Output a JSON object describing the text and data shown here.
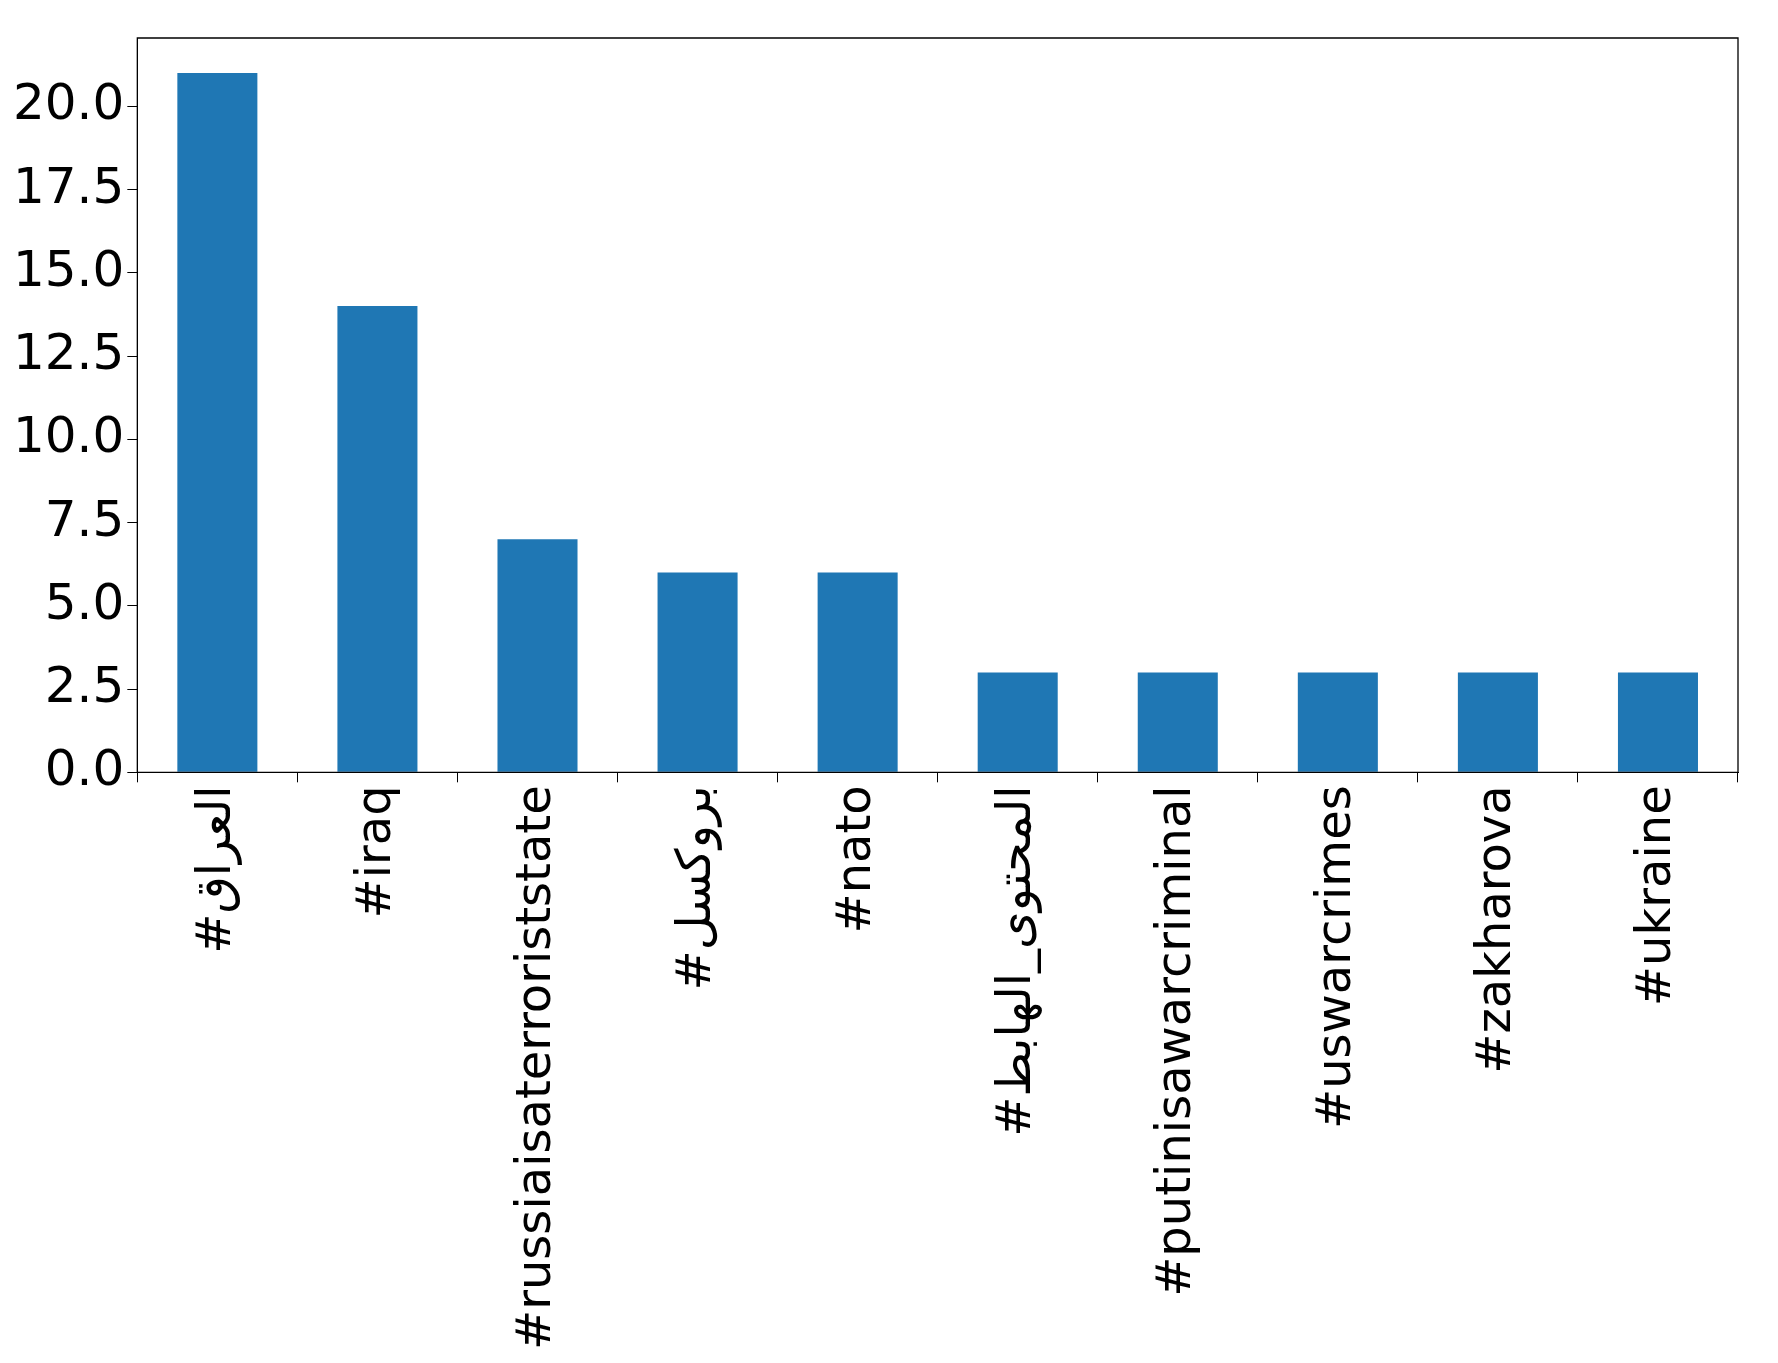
{
  "chart_data": {
    "type": "bar",
    "categories": [
      "#العراق",
      "#iraq",
      "#russiaisaterroriststate",
      "#بروكسل",
      "#nato",
      "#المحتوى_الهابط",
      "#putinisawarcriminal",
      "#uswarcrimes",
      "#zakharova",
      "#ukraine"
    ],
    "values": [
      21,
      14,
      7,
      6,
      6,
      3,
      3,
      3,
      3,
      3
    ],
    "color": "#1f77b4",
    "ylim": [
      0,
      22.05
    ],
    "yticks": [
      {
        "value": 0,
        "label": "0.0"
      },
      {
        "value": 2.5,
        "label": "2.5"
      },
      {
        "value": 5,
        "label": "5.0"
      },
      {
        "value": 7.5,
        "label": "7.5"
      },
      {
        "value": 10,
        "label": "10.0"
      },
      {
        "value": 12.5,
        "label": "12.5"
      },
      {
        "value": 15,
        "label": "15.0"
      },
      {
        "value": 17.5,
        "label": "17.5"
      },
      {
        "value": 20,
        "label": "20.0"
      }
    ],
    "grid": false,
    "legend": false
  }
}
